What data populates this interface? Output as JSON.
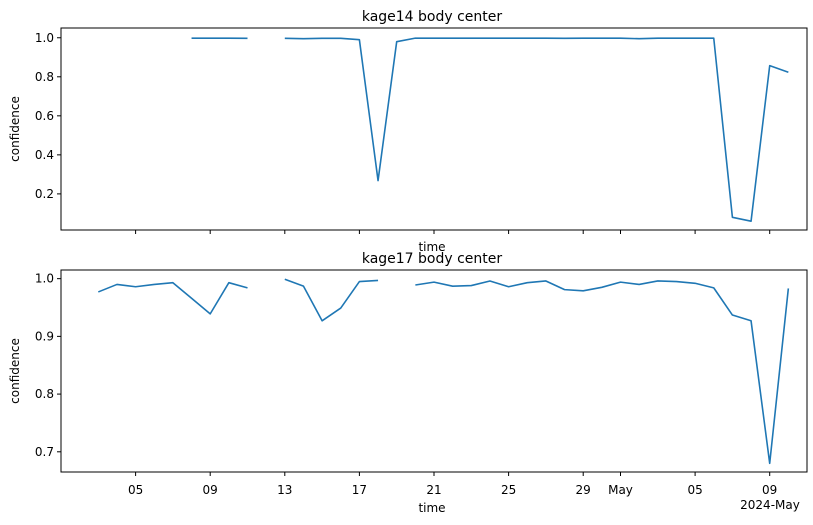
{
  "chart_data": [
    {
      "type": "line",
      "title": "kage14 body center",
      "xlabel": "time",
      "ylabel": "confidence",
      "color": "#1f77b4",
      "ylim": [
        0.015,
        1.05
      ],
      "yticks": [
        0.2,
        0.4,
        0.6,
        0.8,
        1.0
      ],
      "ytick_labels": [
        "0.2",
        "0.4",
        "0.6",
        "0.8",
        "1.0"
      ],
      "x_axis_visible_labels": false,
      "grid": false,
      "series": [
        {
          "x": [
            "2024-04-08",
            "2024-04-09",
            "2024-04-10",
            "2024-04-11",
            "2024-04-12",
            "2024-04-13",
            "2024-04-14",
            "2024-04-15",
            "2024-04-16",
            "2024-04-17",
            "2024-04-18",
            "2024-04-19",
            "2024-04-20",
            "2024-04-21",
            "2024-04-22",
            "2024-04-23",
            "2024-04-24",
            "2024-04-25",
            "2024-04-26",
            "2024-04-27",
            "2024-04-28",
            "2024-04-29",
            "2024-04-30",
            "2024-05-01",
            "2024-05-02",
            "2024-05-03",
            "2024-05-04",
            "2024-05-05",
            "2024-05-06",
            "2024-05-07",
            "2024-05-08",
            "2024-05-09",
            "2024-05-10"
          ],
          "y": [
            0.998,
            0.998,
            0.998,
            0.997,
            null,
            0.997,
            0.995,
            0.997,
            0.997,
            0.99,
            0.268,
            0.98,
            0.998,
            0.998,
            0.998,
            0.998,
            0.998,
            0.998,
            0.998,
            0.998,
            0.997,
            0.998,
            0.998,
            0.998,
            0.995,
            0.998,
            0.998,
            0.998,
            0.998,
            0.08,
            0.06,
            0.857,
            0.823
          ]
        }
      ]
    },
    {
      "type": "line",
      "title": "kage17 body center",
      "xlabel": "time",
      "ylabel": "confidence",
      "color": "#1f77b4",
      "ylim": [
        0.665,
        1.015
      ],
      "yticks": [
        0.7,
        0.8,
        0.9,
        1.0
      ],
      "ytick_labels": [
        "0.7",
        "0.8",
        "0.9",
        "1.0"
      ],
      "x_axis_visible_labels": true,
      "grid": false,
      "series": [
        {
          "x": [
            "2024-04-03",
            "2024-04-04",
            "2024-04-05",
            "2024-04-06",
            "2024-04-07",
            "2024-04-08",
            "2024-04-09",
            "2024-04-10",
            "2024-04-11",
            "2024-04-12",
            "2024-04-13",
            "2024-04-14",
            "2024-04-15",
            "2024-04-16",
            "2024-04-17",
            "2024-04-18",
            "2024-04-19",
            "2024-04-20",
            "2024-04-21",
            "2024-04-22",
            "2024-04-23",
            "2024-04-24",
            "2024-04-25",
            "2024-04-26",
            "2024-04-27",
            "2024-04-28",
            "2024-04-29",
            "2024-04-30",
            "2024-05-01",
            "2024-05-02",
            "2024-05-03",
            "2024-05-04",
            "2024-05-05",
            "2024-05-06",
            "2024-05-07",
            "2024-05-08",
            "2024-05-09",
            "2024-05-10"
          ],
          "y": [
            0.977,
            0.99,
            0.986,
            0.99,
            0.993,
            0.966,
            0.939,
            0.993,
            0.984,
            null,
            0.999,
            0.987,
            0.927,
            0.949,
            0.995,
            0.997,
            null,
            0.989,
            0.994,
            0.987,
            0.988,
            0.996,
            0.986,
            0.993,
            0.996,
            0.981,
            0.979,
            0.985,
            0.994,
            0.99,
            0.996,
            0.995,
            0.992,
            0.984,
            0.937,
            0.927,
            0.68,
            0.983
          ]
        }
      ]
    }
  ],
  "x_axis": {
    "domain": [
      "2024-04-01",
      "2024-05-11"
    ],
    "ticks": [
      "2024-04-05",
      "2024-04-09",
      "2024-04-13",
      "2024-04-17",
      "2024-04-21",
      "2024-04-25",
      "2024-04-29",
      "2024-05-01",
      "2024-05-05",
      "2024-05-09"
    ],
    "tick_labels": [
      "05",
      "09",
      "13",
      "17",
      "21",
      "25",
      "29",
      "May",
      "05",
      "09"
    ],
    "offset_label": "2024-May"
  }
}
